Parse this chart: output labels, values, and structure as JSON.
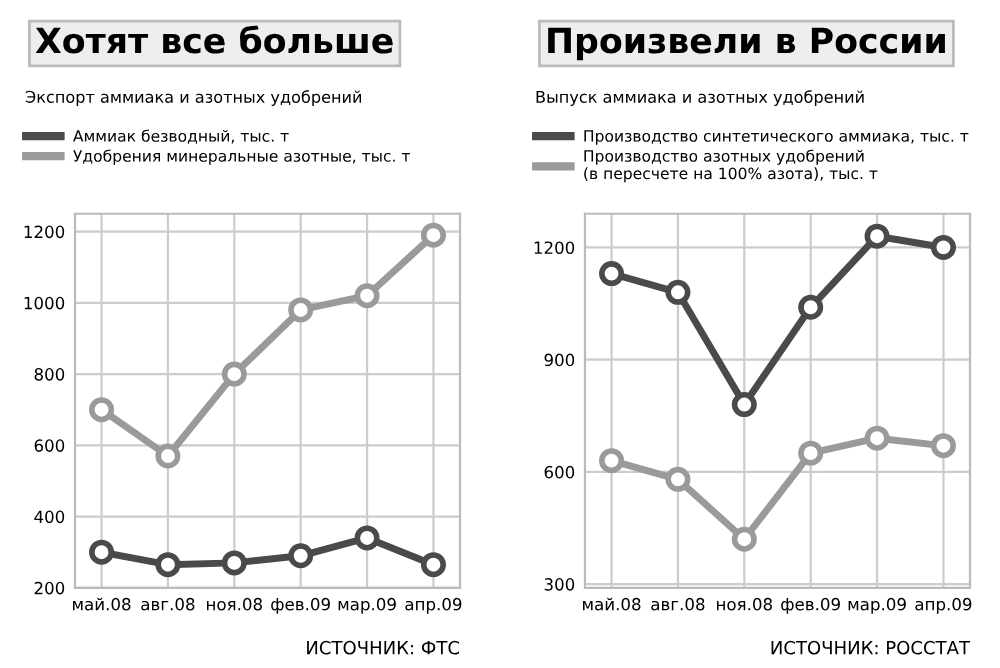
{
  "chart_data": [
    {
      "type": "line",
      "title": "Хотят все больше",
      "subtitle": "Экспорт аммиака и азотных удобрений",
      "categories": [
        "май.08",
        "авг.08",
        "ноя.08",
        "фев.09",
        "мар.09",
        "апр.09"
      ],
      "series": [
        {
          "name": "Аммиак безводный, тыс. т",
          "color": "#4a4a4a",
          "values": [
            300,
            265,
            270,
            290,
            340,
            265
          ]
        },
        {
          "name": "Удобрения минеральные азотные, тыс. т",
          "color": "#9a9a9a",
          "values": [
            700,
            570,
            800,
            980,
            1020,
            1190
          ]
        }
      ],
      "ylim": [
        200,
        1250
      ],
      "yticks": [
        200,
        400,
        600,
        800,
        1000,
        1200
      ],
      "grid": true,
      "legend": "top left",
      "marker": "circle",
      "line_style": "solid",
      "annotations": [
        "ИСТОЧНИК: ФТС"
      ]
    },
    {
      "type": "line",
      "title": "Произвели в России",
      "subtitle": "Выпуск аммиака и азотных удобрений",
      "categories": [
        "май.08",
        "авг.08",
        "ноя.08",
        "фев.09",
        "мар.09",
        "апр.09"
      ],
      "series": [
        {
          "name": "Производство синтетического аммиака, тыс. т",
          "color": "#4a4a4a",
          "values": [
            1130,
            1080,
            780,
            1040,
            1230,
            1200
          ]
        },
        {
          "name": "Производство азотных удобрений\n(в пересчете на 100% азота), тыс. т",
          "color": "#9a9a9a",
          "values": [
            630,
            580,
            420,
            650,
            690,
            670
          ]
        }
      ],
      "ylim": [
        290,
        1290
      ],
      "yticks": [
        300,
        600,
        900,
        1200
      ],
      "grid": true,
      "legend": "top left",
      "marker": "circle",
      "line_style": "solid",
      "annotations": [
        "ИСТОЧНИК: РОССТАТ"
      ]
    }
  ]
}
